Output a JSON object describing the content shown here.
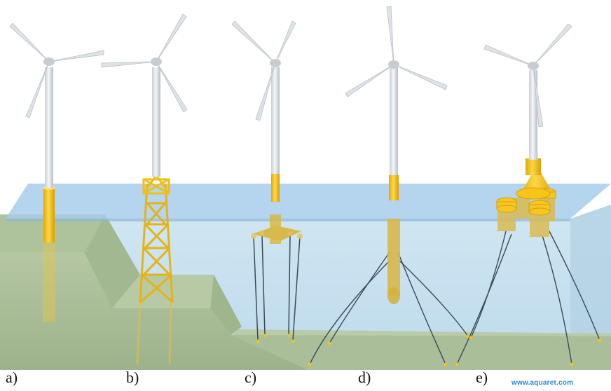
{
  "labels": {
    "a": "a)",
    "b": "b)",
    "c": "c)",
    "d": "d)",
    "e": "e)"
  },
  "watermark": "www.aquaret.com",
  "colors": {
    "sea_surface": "#9cc6e6",
    "water": "#c6e0ef",
    "seabed": "#a9bd9a",
    "foundation": "#f2c318",
    "turbine": "#e9ecef",
    "mooring_line": "#3c4a5a"
  }
}
